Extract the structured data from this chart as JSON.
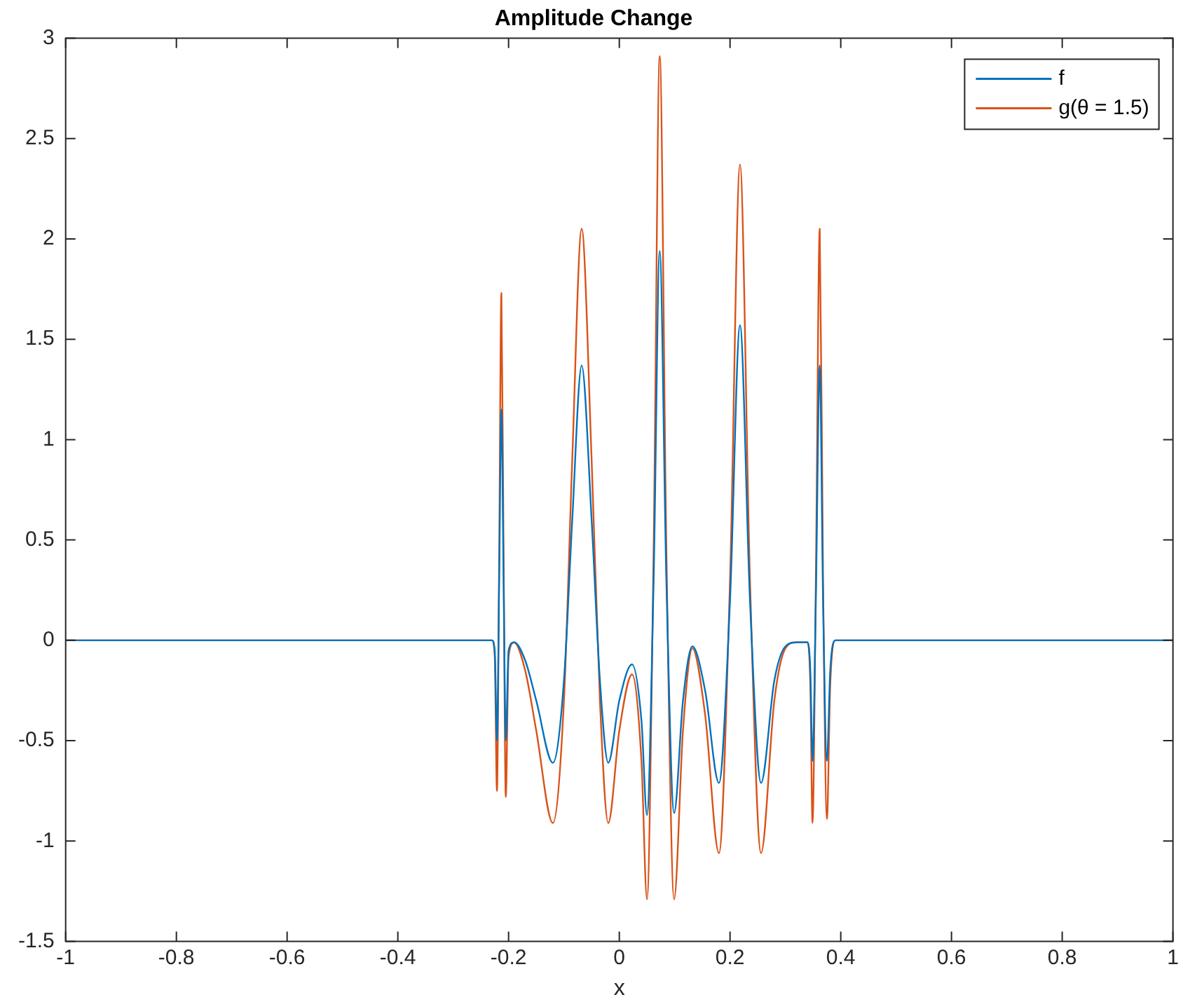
{
  "chart_data": {
    "type": "line",
    "title": "Amplitude Change",
    "xlabel": "x",
    "x": [
      -1,
      -0.23,
      -0.225,
      -0.221,
      -0.217,
      -0.213,
      -0.209,
      -0.205,
      -0.2,
      -0.19,
      -0.17,
      -0.15,
      -0.12,
      -0.1,
      -0.085,
      -0.068,
      -0.05,
      -0.035,
      -0.02,
      0,
      0.023,
      0.04,
      0.05,
      0.062,
      0.073,
      0.085,
      0.099,
      0.115,
      0.132,
      0.155,
      0.18,
      0.2,
      0.218,
      0.236,
      0.256,
      0.28,
      0.3,
      0.32,
      0.34,
      0.345,
      0.349,
      0.355,
      0.362,
      0.368,
      0.375,
      0.381,
      0.39,
      1
    ],
    "series": [
      {
        "name": "f",
        "color": "#0072bd",
        "values": [
          0,
          0,
          -0.05,
          -0.5,
          0.3,
          1.15,
          0.3,
          -0.5,
          -0.05,
          -0.01,
          -0.1,
          -0.3,
          -0.61,
          -0.2,
          0.6,
          1.37,
          0.6,
          -0.2,
          -0.61,
          -0.3,
          -0.12,
          -0.4,
          -0.87,
          0.3,
          1.94,
          0.3,
          -0.86,
          -0.3,
          -0.03,
          -0.25,
          -0.71,
          0.2,
          1.57,
          0.2,
          -0.71,
          -0.2,
          -0.03,
          -0.01,
          -0.01,
          -0.15,
          -0.6,
          0.2,
          1.37,
          0.2,
          -0.6,
          -0.15,
          0,
          0
        ]
      },
      {
        "name": "g(θ = 1.5)",
        "color": "#d95319",
        "values": [
          0,
          0,
          -0.08,
          -0.75,
          0.4,
          1.73,
          0.4,
          -0.78,
          -0.08,
          -0.01,
          -0.15,
          -0.45,
          -0.91,
          -0.3,
          0.9,
          2.05,
          0.9,
          -0.3,
          -0.91,
          -0.45,
          -0.17,
          -0.6,
          -1.29,
          0.45,
          2.91,
          0.45,
          -1.29,
          -0.45,
          -0.04,
          -0.37,
          -1.06,
          0.3,
          2.37,
          0.3,
          -1.06,
          -0.3,
          -0.04,
          -0.01,
          -0.01,
          -0.22,
          -0.91,
          0.3,
          2.05,
          0.3,
          -0.89,
          -0.22,
          0,
          0
        ]
      }
    ],
    "xlim": [
      -1,
      1
    ],
    "xticks": [
      -1,
      -0.8,
      -0.6,
      -0.4,
      -0.2,
      0,
      0.2,
      0.4,
      0.6,
      0.8,
      1
    ],
    "ylim": [
      -1.5,
      3
    ],
    "yticks": [
      -1.5,
      -1,
      -0.5,
      0,
      0.5,
      1,
      1.5,
      2,
      2.5,
      3
    ],
    "grid": false,
    "legend": "top right",
    "marker": "none",
    "line_style": "solid"
  }
}
